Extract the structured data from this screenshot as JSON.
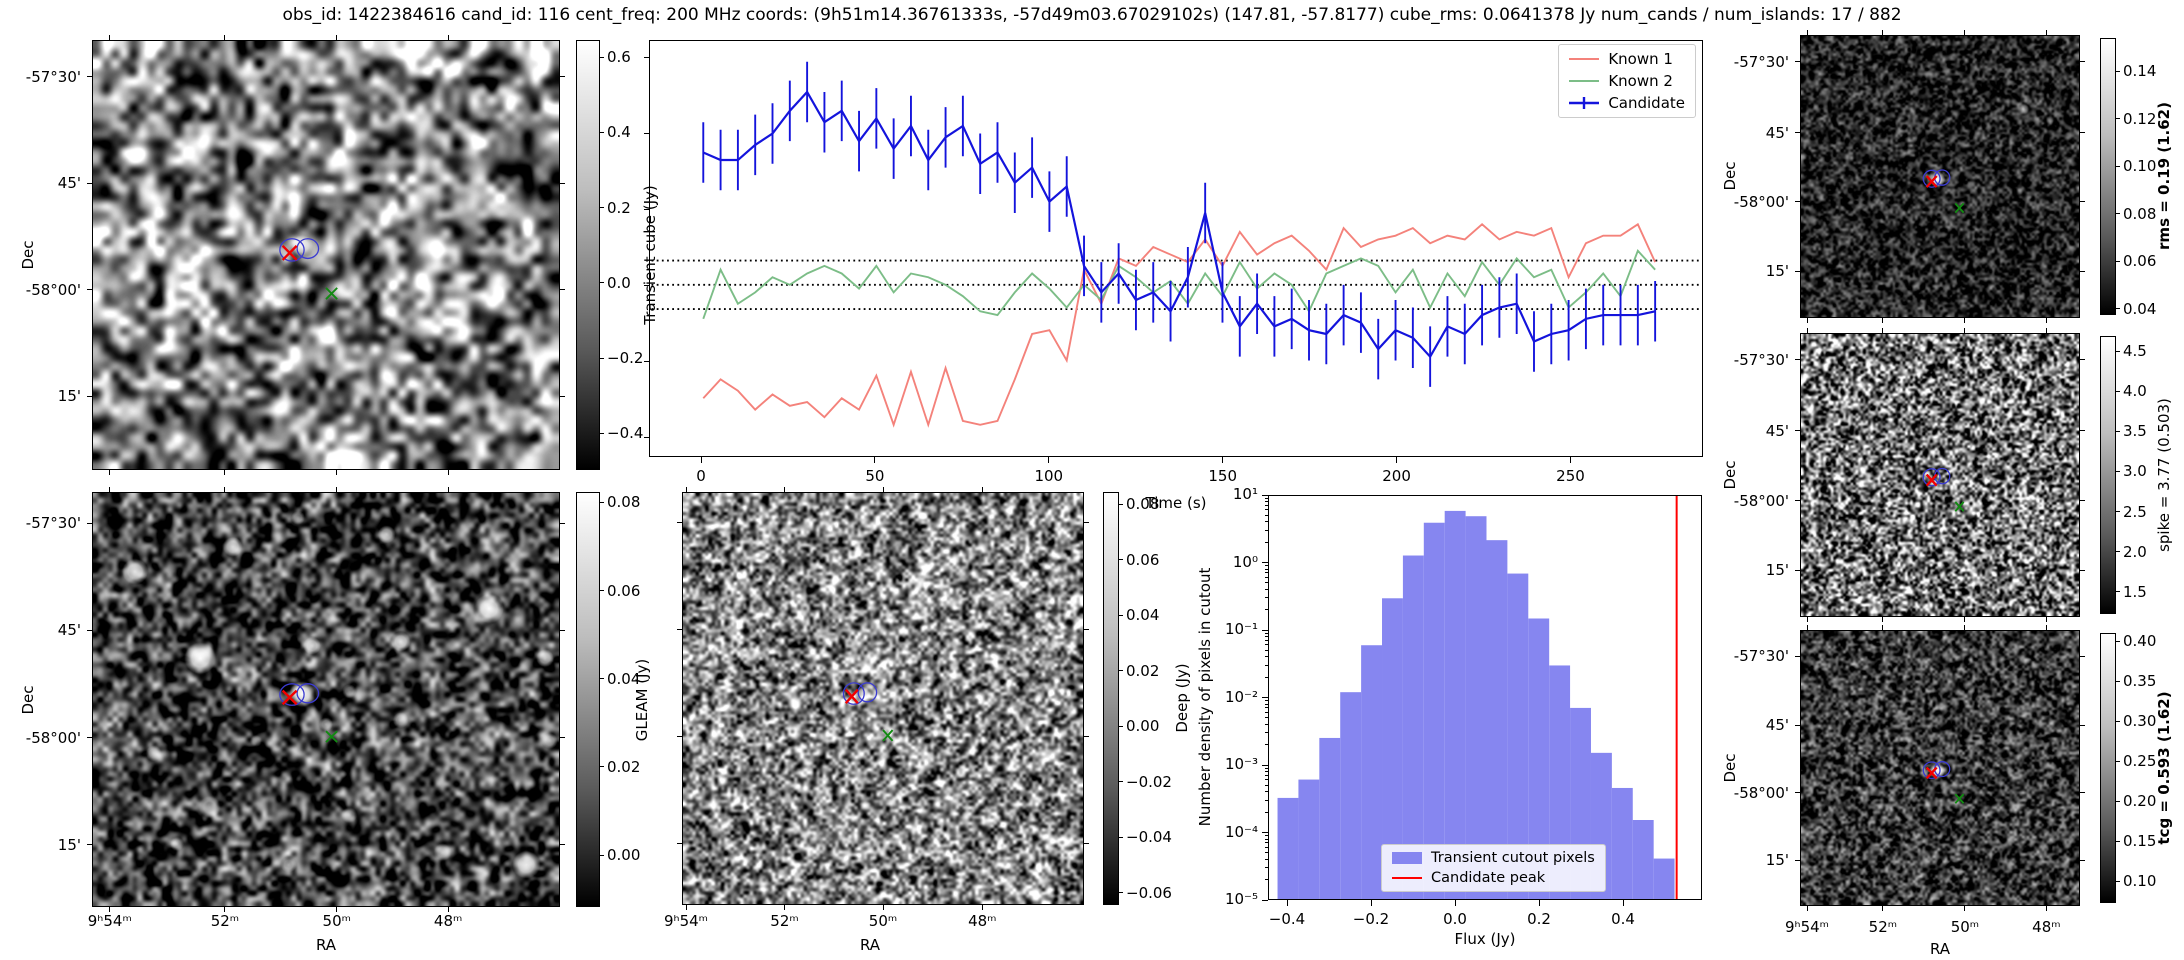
{
  "title": "obs_id: 1422384616 cand_id: 116 cent_freq: 200 MHz coords: (9h51m14.36761333s, -57d49m03.67029102s) (147.81, -57.8177) cube_rms: 0.0641378 Jy num_cands / num_islands: 17 / 882",
  "axes": {
    "dec_label": "Dec",
    "ra_label": "RA",
    "dec_ticks": [
      "-57°30'",
      "45'",
      "-58°00'",
      "15'"
    ],
    "ra_ticks": [
      "9ʰ54ᵐ",
      "52ᵐ",
      "50ᵐ",
      "48ᵐ"
    ]
  },
  "colorbars": {
    "transient_cube": {
      "label": "Transient cube (Jy)",
      "ticks": [
        "0.6",
        "0.4",
        "0.2",
        "0.0",
        "−0.2",
        "−0.4"
      ],
      "bold": false
    },
    "gleam": {
      "label": "GLEAM (Jy)",
      "ticks": [
        "0.08",
        "0.06",
        "0.04",
        "0.02",
        "0.00"
      ],
      "bold": false
    },
    "deep": {
      "label": "Deep (Jy)",
      "ticks": [
        "0.08",
        "0.06",
        "0.04",
        "0.02",
        "0.00",
        "−0.02",
        "−0.04",
        "−0.06"
      ],
      "bold": false
    },
    "rms": {
      "label": "rms = 0.19 (1.62)",
      "ticks": [
        "0.14",
        "0.12",
        "0.10",
        "0.08",
        "0.06",
        "0.04"
      ],
      "bold": true
    },
    "spike": {
      "label": "spike = 3.77 (0.503)",
      "ticks": [
        "4.5",
        "4.0",
        "3.5",
        "3.0",
        "2.5",
        "2.0",
        "1.5"
      ],
      "bold": false
    },
    "tcg": {
      "label": "tcg = 0.593 (1.62)",
      "ticks": [
        "0.40",
        "0.35",
        "0.30",
        "0.25",
        "0.20",
        "0.15",
        "0.10"
      ],
      "bold": true
    }
  },
  "cutout_markers": {
    "contour_color": "#3b3bd1",
    "candidate_x_color": "#f20000",
    "known_x_color": "#128a12"
  },
  "chart_data": [
    {
      "id": "lightcurve",
      "type": "line",
      "xlabel": "Time (s)",
      "ylabel": "",
      "xlim": [
        -14,
        290
      ],
      "ylim": [
        -0.453,
        0.645
      ],
      "xticks": [
        0,
        50,
        100,
        150,
        200,
        250
      ],
      "yticks": [
        0.6,
        0.4,
        0.2,
        0.0,
        -0.2,
        -0.4
      ],
      "hlines": {
        "style": "dotted",
        "color": "#000000",
        "values": [
          0.0641378,
          0,
          -0.0641378
        ]
      },
      "legend_position": "upper right",
      "x": [
        0,
        5,
        10,
        15,
        20,
        25,
        30,
        35,
        40,
        45,
        50,
        55,
        60,
        65,
        70,
        75,
        80,
        85,
        90,
        95,
        100,
        105,
        110,
        115,
        120,
        125,
        130,
        135,
        140,
        145,
        150,
        155,
        160,
        165,
        170,
        175,
        180,
        185,
        190,
        195,
        200,
        205,
        210,
        215,
        220,
        225,
        230,
        235,
        240,
        245,
        250,
        255,
        260,
        265,
        270,
        275
      ],
      "series": [
        {
          "name": "Known 1",
          "color": "#f4827b",
          "values": [
            -0.3,
            -0.25,
            -0.28,
            -0.33,
            -0.29,
            -0.32,
            -0.31,
            -0.35,
            -0.3,
            -0.33,
            -0.24,
            -0.37,
            -0.23,
            -0.37,
            -0.22,
            -0.36,
            -0.37,
            -0.36,
            -0.25,
            -0.13,
            -0.12,
            -0.2,
            0.04,
            -0.05,
            0.07,
            0.05,
            0.1,
            0.08,
            0.06,
            0.12,
            0.05,
            0.14,
            0.08,
            0.11,
            0.13,
            0.09,
            0.04,
            0.15,
            0.1,
            0.12,
            0.13,
            0.15,
            0.11,
            0.13,
            0.12,
            0.16,
            0.12,
            0.14,
            0.13,
            0.15,
            0.02,
            0.11,
            0.13,
            0.13,
            0.16,
            0.06
          ]
        },
        {
          "name": "Known 2",
          "color": "#7cbd87",
          "values": [
            -0.09,
            0.04,
            -0.05,
            -0.02,
            0.02,
            0.0,
            0.03,
            0.05,
            0.03,
            -0.01,
            0.05,
            -0.02,
            0.03,
            0.02,
            0.0,
            -0.03,
            -0.07,
            -0.08,
            -0.02,
            0.03,
            -0.01,
            -0.06,
            0.0,
            -0.04,
            0.05,
            0.02,
            -0.02,
            0.01,
            -0.05,
            0.03,
            -0.03,
            0.06,
            -0.01,
            0.03,
            0.0,
            -0.07,
            0.03,
            0.05,
            0.07,
            0.05,
            -0.02,
            0.04,
            -0.06,
            0.03,
            -0.03,
            0.06,
            0.0,
            0.07,
            0.02,
            0.04,
            -0.06,
            -0.02,
            0.03,
            -0.03,
            0.09,
            0.04
          ]
        },
        {
          "name": "Candidate",
          "color": "#1414dc",
          "errorbar": 0.08,
          "values": [
            0.35,
            0.33,
            0.33,
            0.37,
            0.4,
            0.46,
            0.51,
            0.43,
            0.46,
            0.38,
            0.44,
            0.36,
            0.42,
            0.33,
            0.39,
            0.42,
            0.32,
            0.35,
            0.27,
            0.31,
            0.22,
            0.26,
            0.05,
            -0.02,
            0.03,
            -0.04,
            -0.02,
            -0.07,
            0.02,
            0.19,
            -0.02,
            -0.11,
            -0.05,
            -0.11,
            -0.09,
            -0.12,
            -0.13,
            -0.08,
            -0.1,
            -0.17,
            -0.12,
            -0.14,
            -0.19,
            -0.11,
            -0.13,
            -0.08,
            -0.06,
            -0.05,
            -0.15,
            -0.13,
            -0.12,
            -0.09,
            -0.08,
            -0.08,
            -0.08,
            -0.07
          ]
        }
      ]
    },
    {
      "id": "pixel_histogram",
      "type": "bar",
      "xlabel": "Flux (Jy)",
      "ylabel": "Number density of pixels in cutout",
      "yscale": "log",
      "ylim": [
        1e-05,
        10
      ],
      "xticks": [
        -0.4,
        -0.2,
        0.0,
        0.2,
        0.4
      ],
      "yticks": [
        "10¹",
        "10⁰",
        "10⁻¹",
        "10⁻²",
        "10⁻³",
        "10⁻⁴",
        "10⁻⁵"
      ],
      "bar_color": "#8686f0",
      "bin_width": 0.05,
      "bin_centers": [
        -0.4,
        -0.35,
        -0.3,
        -0.25,
        -0.2,
        -0.15,
        -0.1,
        -0.05,
        0.0,
        0.05,
        0.1,
        0.15,
        0.2,
        0.25,
        0.3,
        0.35,
        0.4,
        0.45,
        0.5
      ],
      "densities": [
        0.00032,
        0.0006,
        0.0025,
        0.012,
        0.06,
        0.3,
        1.3,
        4.0,
        6.0,
        5.0,
        2.2,
        0.7,
        0.15,
        0.03,
        0.007,
        0.0015,
        0.00045,
        0.00015,
        4e-05
      ],
      "vline": {
        "value": 0.53,
        "color": "#ff0000"
      },
      "legend": [
        "Transient cutout pixels",
        "Candidate peak"
      ],
      "legend_position": "lower left"
    }
  ]
}
